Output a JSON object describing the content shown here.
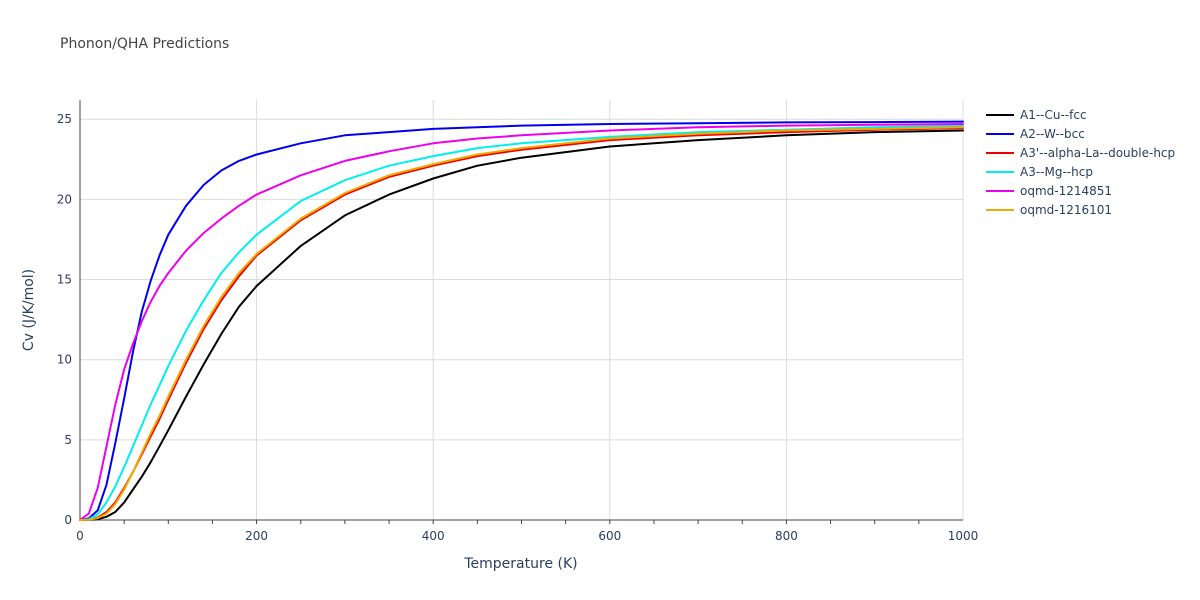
{
  "chart_data": {
    "type": "line",
    "title": "Phonon/QHA Predictions",
    "xlabel": "Temperature (K)",
    "ylabel": "Cv (J/K/mol)",
    "xlim": [
      0,
      1000
    ],
    "ylim": [
      0,
      26.2
    ],
    "xticks": [
      0,
      200,
      400,
      600,
      800,
      1000
    ],
    "yticks": [
      0,
      5,
      10,
      15,
      20,
      25
    ],
    "grid": true,
    "legend_position": "right",
    "x": [
      0,
      10,
      20,
      30,
      40,
      50,
      60,
      70,
      80,
      90,
      100,
      120,
      140,
      160,
      180,
      200,
      250,
      300,
      350,
      400,
      450,
      500,
      600,
      700,
      800,
      900,
      1000
    ],
    "series": [
      {
        "name": "A1--Cu--fcc",
        "color": "#000000",
        "values": [
          0,
          0.01,
          0.05,
          0.2,
          0.5,
          1.1,
          1.9,
          2.7,
          3.6,
          4.6,
          5.6,
          7.7,
          9.7,
          11.6,
          13.3,
          14.6,
          17.1,
          19.0,
          20.3,
          21.3,
          22.1,
          22.6,
          23.3,
          23.7,
          24.0,
          24.2,
          24.3
        ]
      },
      {
        "name": "A2--W--bcc",
        "color": "#0000ee",
        "values": [
          0,
          0.1,
          0.6,
          2.2,
          4.8,
          7.6,
          10.5,
          13.0,
          14.9,
          16.5,
          17.8,
          19.6,
          20.9,
          21.8,
          22.4,
          22.8,
          23.5,
          24.0,
          24.2,
          24.4,
          24.5,
          24.6,
          24.7,
          24.75,
          24.8,
          24.82,
          24.85
        ]
      },
      {
        "name": "A3'--alpha-La--double-hcp",
        "color": "#ee0000",
        "values": [
          0,
          0.03,
          0.15,
          0.5,
          1.1,
          2.0,
          3.0,
          4.1,
          5.2,
          6.3,
          7.5,
          9.8,
          11.9,
          13.7,
          15.2,
          16.5,
          18.7,
          20.3,
          21.4,
          22.1,
          22.7,
          23.1,
          23.7,
          24.0,
          24.2,
          24.35,
          24.45
        ]
      },
      {
        "name": "A3--Mg--hcp",
        "color": "#00eeee",
        "values": [
          0,
          0.05,
          0.35,
          1.1,
          2.1,
          3.3,
          4.6,
          5.9,
          7.2,
          8.4,
          9.6,
          11.8,
          13.7,
          15.4,
          16.7,
          17.8,
          19.9,
          21.2,
          22.1,
          22.7,
          23.2,
          23.5,
          23.9,
          24.2,
          24.35,
          24.5,
          24.6
        ]
      },
      {
        "name": "oqmd-1214851",
        "color": "#ee00ee",
        "values": [
          0,
          0.4,
          2.0,
          4.6,
          7.2,
          9.4,
          11.0,
          12.4,
          13.6,
          14.6,
          15.4,
          16.8,
          17.9,
          18.8,
          19.6,
          20.3,
          21.5,
          22.4,
          23.0,
          23.5,
          23.8,
          24.0,
          24.3,
          24.5,
          24.6,
          24.65,
          24.7
        ]
      },
      {
        "name": "oqmd-1216101",
        "color": "#eeaa00",
        "values": [
          0,
          0.02,
          0.12,
          0.4,
          1.0,
          1.9,
          3.0,
          4.2,
          5.4,
          6.5,
          7.7,
          10.0,
          12.1,
          13.9,
          15.4,
          16.6,
          18.8,
          20.4,
          21.5,
          22.2,
          22.8,
          23.2,
          23.8,
          24.1,
          24.3,
          24.4,
          24.5
        ]
      }
    ]
  }
}
